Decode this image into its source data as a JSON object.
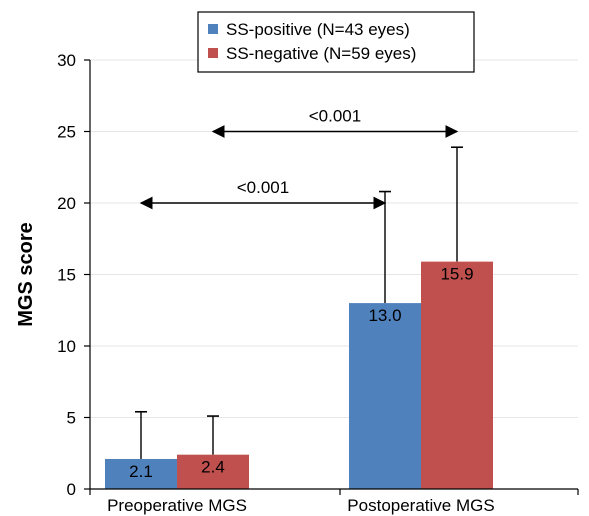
{
  "chart_data": {
    "type": "bar",
    "categories": [
      "Preoperative MGS",
      "Postoperative MGS"
    ],
    "series": [
      {
        "name": "SS-positive (N=43 eyes)",
        "values": [
          2.1,
          13.0
        ],
        "error": [
          3.3,
          7.8
        ],
        "labels": [
          "2.1",
          "13.0"
        ],
        "color": "#4f81bd"
      },
      {
        "name": "SS-negative (N=59 eyes)",
        "values": [
          2.4,
          15.9
        ],
        "error": [
          2.7,
          8.0
        ],
        "labels": [
          "2.4",
          "15.9"
        ],
        "color": "#c0504d"
      }
    ],
    "xlabel": "",
    "ylabel": "MGS score",
    "ylim": [
      0,
      30
    ],
    "yticks": [
      0,
      5,
      10,
      15,
      20,
      25,
      30
    ],
    "grid": true,
    "legend": "top-center",
    "annotations": [
      {
        "text": "<0.001",
        "from": {
          "category": 0,
          "series": 0
        },
        "to": {
          "category": 1,
          "series": 0
        },
        "y": 20
      },
      {
        "text": "<0.001",
        "from": {
          "category": 0,
          "series": 1
        },
        "to": {
          "category": 1,
          "series": 1
        },
        "y": 25
      }
    ]
  }
}
